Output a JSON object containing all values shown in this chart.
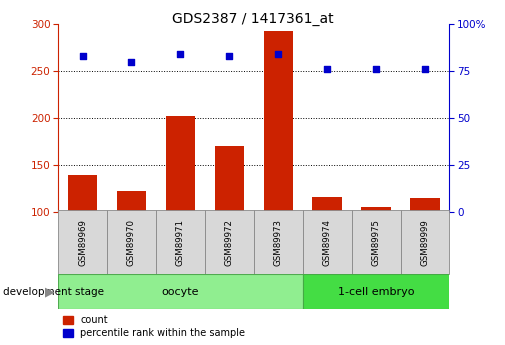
{
  "title": "GDS2387 / 1417361_at",
  "samples": [
    "GSM89969",
    "GSM89970",
    "GSM89971",
    "GSM89972",
    "GSM89973",
    "GSM89974",
    "GSM89975",
    "GSM89999"
  ],
  "counts": [
    140,
    122,
    202,
    170,
    293,
    116,
    105,
    115
  ],
  "percentile_ranks": [
    83,
    80,
    84,
    83,
    84,
    76,
    76,
    76
  ],
  "oocyte_indices": [
    0,
    1,
    2,
    3,
    4
  ],
  "embryo_indices": [
    5,
    6,
    7
  ],
  "oocyte_label": "oocyte",
  "embryo_label": "1-cell embryo",
  "oocyte_color": "#90EE90",
  "embryo_color": "#44DD44",
  "bar_color": "#CC2200",
  "dot_color": "#0000CC",
  "ylim_left": [
    100,
    300
  ],
  "ylim_right": [
    0,
    100
  ],
  "yticks_left": [
    100,
    150,
    200,
    250,
    300
  ],
  "yticks_right": [
    0,
    25,
    50,
    75,
    100
  ],
  "grid_values": [
    150,
    200,
    250
  ],
  "left_axis_color": "#CC2200",
  "right_axis_color": "#0000CC",
  "bar_width": 0.6,
  "sample_box_color": "#D8D8D8",
  "sample_box_edge": "#888888"
}
